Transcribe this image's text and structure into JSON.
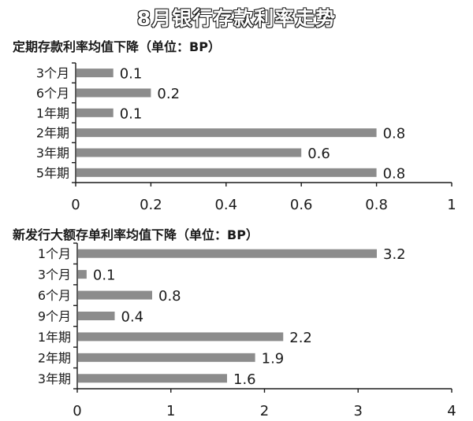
{
  "title": "8月银行存款利率走势",
  "chart_data": [
    {
      "type": "bar",
      "orientation": "horizontal",
      "title": "定期存款利率均值下降（单位：BP）",
      "categories": [
        "3个月",
        "6个月",
        "1年期",
        "2年期",
        "3年期",
        "5年期"
      ],
      "values": [
        0.1,
        0.2,
        0.1,
        0.8,
        0.6,
        0.8
      ],
      "value_labels": [
        "0.1",
        "0.2",
        "0.1",
        "0.8",
        "0.6",
        "0.8"
      ],
      "xlim": [
        0,
        1
      ],
      "xticks": [
        "0",
        "0.2",
        "0.4",
        "0.6",
        "0.8",
        "1"
      ],
      "bar_color": "#8c8c8c",
      "grid": false
    },
    {
      "type": "bar",
      "orientation": "horizontal",
      "title": "新发行大额存单利率均值下降（单位：BP）",
      "categories": [
        "1个月",
        "3个月",
        "6个月",
        "9个月",
        "1年期",
        "2年期",
        "3年期"
      ],
      "values": [
        3.2,
        0.1,
        0.8,
        0.4,
        2.2,
        1.9,
        1.6
      ],
      "value_labels": [
        "3.2",
        "0.1",
        "0.8",
        "0.4",
        "2.2",
        "1.9",
        "1.6"
      ],
      "xlim": [
        0,
        4
      ],
      "xticks": [
        "0",
        "1",
        "2",
        "3",
        "4"
      ],
      "bar_color": "#8c8c8c",
      "grid": false
    }
  ]
}
